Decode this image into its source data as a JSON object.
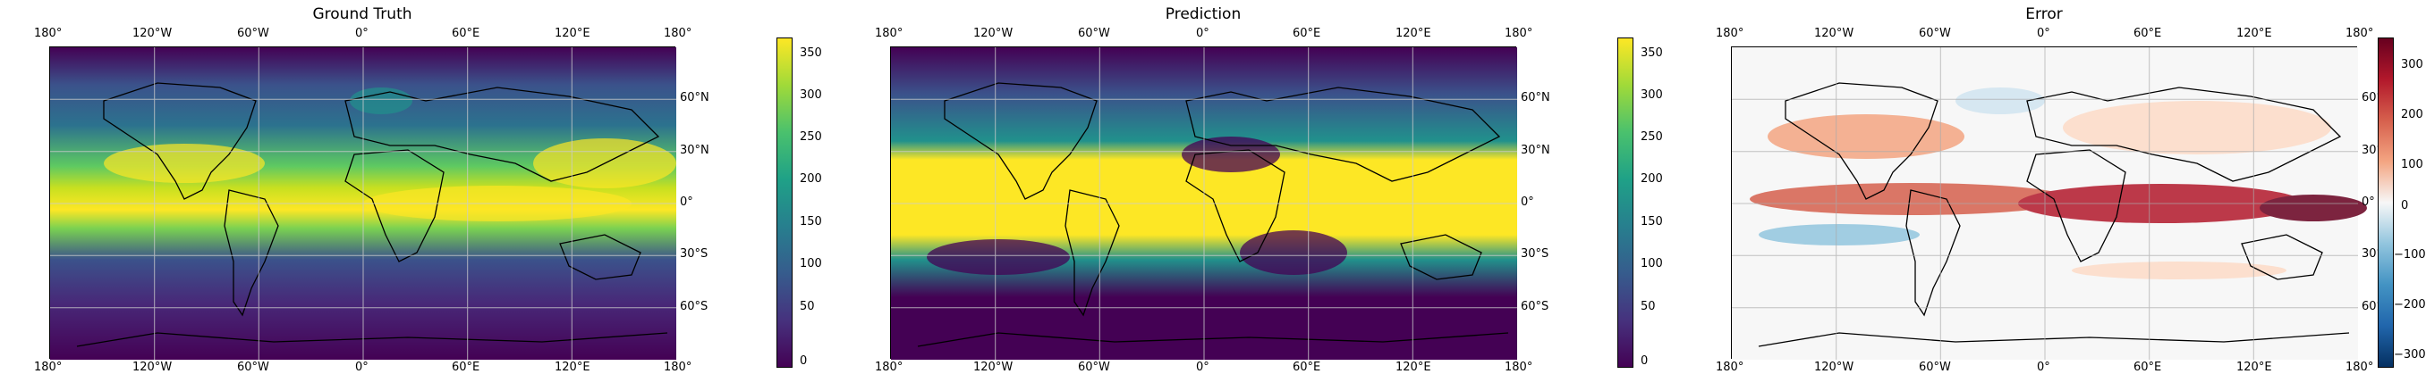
{
  "panels": [
    {
      "title": "Ground Truth",
      "colormap": "viridis",
      "colorbar_ticks": [
        "350",
        "300",
        "250",
        "200",
        "150",
        "100",
        "50",
        "0"
      ]
    },
    {
      "title": "Prediction",
      "colormap": "viridis",
      "colorbar_ticks": [
        "350",
        "300",
        "250",
        "200",
        "150",
        "100",
        "50",
        "0"
      ]
    },
    {
      "title": "Error",
      "colormap": "RdBu_r",
      "colorbar_ticks": [
        "300",
        "200",
        "100",
        "0",
        "−100",
        "−200",
        "−300"
      ]
    }
  ],
  "longitude_labels": [
    "180°",
    "120°W",
    "60°W",
    "0°",
    "60°E",
    "120°E",
    "180°"
  ],
  "latitude_labels": [
    "60°N",
    "30°N",
    "0°",
    "30°S",
    "60°S"
  ],
  "colors": {
    "viridis_low": "#440154",
    "viridis_mid": "#21918c",
    "viridis_high": "#fde725",
    "rdbu_low": "#053061",
    "rdbu_mid": "#f7f7f7",
    "rdbu_high": "#67001f",
    "gridline": "#cccccc",
    "coastline": "#000000"
  }
}
